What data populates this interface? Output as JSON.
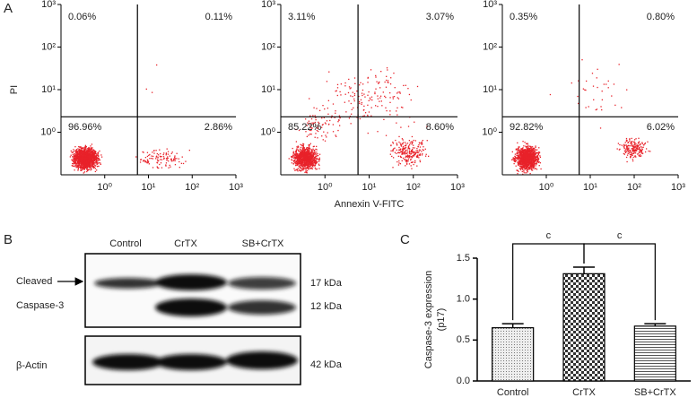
{
  "panels": [
    "A",
    "B",
    "C"
  ],
  "chart_data": [
    {
      "type": "flow",
      "ylabel": "PI",
      "xscale": "log",
      "yscale": "log",
      "color": "#e8222a",
      "xlim": [
        0.1,
        1000
      ],
      "ylim": [
        0.1,
        1000
      ],
      "xticks": [
        {
          "value": 1,
          "label": "10⁰"
        },
        {
          "value": 10,
          "label": "10¹"
        },
        {
          "value": 100,
          "label": "10²"
        },
        {
          "value": 1000,
          "label": "10³"
        }
      ],
      "yticks": [
        {
          "value": 1,
          "label": "10⁰"
        },
        {
          "value": 10,
          "label": "10¹"
        },
        {
          "value": 100,
          "label": "10²"
        },
        {
          "value": 1000,
          "label": "10³"
        }
      ],
      "quadrant_x": 5.6,
      "quadrant_y": 2.3,
      "quadrants": {
        "values": [
          0.06,
          0.11,
          96.96,
          2.86
        ],
        "value_labels": [
          "0.06%",
          "0.11%",
          "96.96%",
          "2.86%"
        ]
      }
    },
    {
      "type": "flow",
      "xlabel": "Annexin V-FITC",
      "xscale": "log",
      "yscale": "log",
      "color": "#e8222a",
      "xlim": [
        0.1,
        1000
      ],
      "ylim": [
        0.1,
        1000
      ],
      "xticks": [
        {
          "value": 1,
          "label": "10⁰"
        },
        {
          "value": 10,
          "label": "10¹"
        },
        {
          "value": 100,
          "label": "10²"
        },
        {
          "value": 1000,
          "label": "10³"
        }
      ],
      "yticks": [
        {
          "value": 1,
          "label": "10⁰"
        },
        {
          "value": 10,
          "label": "10¹"
        },
        {
          "value": 100,
          "label": "10²"
        },
        {
          "value": 1000,
          "label": "10³"
        }
      ],
      "quadrant_x": 5.6,
      "quadrant_y": 2.3,
      "quadrants": {
        "values": [
          3.11,
          3.07,
          85.22,
          8.6
        ],
        "value_labels": [
          "3.11%",
          "3.07%",
          "85.22%",
          "8.60%"
        ]
      }
    },
    {
      "type": "flow",
      "xscale": "log",
      "yscale": "log",
      "color": "#e8222a",
      "xlim": [
        0.1,
        1000
      ],
      "ylim": [
        0.1,
        1000
      ],
      "xticks": [
        {
          "value": 1,
          "label": "10⁰"
        },
        {
          "value": 10,
          "label": "10¹"
        },
        {
          "value": 100,
          "label": "10²"
        },
        {
          "value": 1000,
          "label": "10³"
        }
      ],
      "yticks": [
        {
          "value": 1,
          "label": "10⁰"
        },
        {
          "value": 10,
          "label": "10¹"
        },
        {
          "value": 100,
          "label": "10²"
        },
        {
          "value": 1000,
          "label": "10³"
        }
      ],
      "quadrant_x": 5.6,
      "quadrant_y": 2.3,
      "quadrants": {
        "values": [
          0.35,
          0.8,
          92.82,
          6.02
        ],
        "value_labels": [
          "0.35%",
          "0.80%",
          "92.82%",
          "6.02%"
        ]
      }
    },
    {
      "type": "bar",
      "ylabel": [
        "Caspase-3 expression",
        "(p17)"
      ],
      "categories": [
        "Control",
        "CrTX",
        "SB+CrTX"
      ],
      "values": [
        0.65,
        1.31,
        0.67
      ],
      "errors": [
        0.05,
        0.08,
        0.03
      ],
      "ylim": [
        0,
        1.5
      ],
      "yticks": [
        {
          "value": 0,
          "label": "0.0"
        },
        0.5,
        {
          "value": 1,
          "label": "1.0"
        },
        1.5
      ],
      "annotations": [
        "c",
        "c"
      ]
    }
  ],
  "blot": {
    "lanes": [
      "Control",
      "CrTX",
      "SB+CrTX"
    ],
    "left_labels": [
      "Cleaved",
      "Caspase-3",
      "β-Actin"
    ],
    "right_labels": [
      "17 kDa",
      "12 kDa",
      "42 kDa"
    ]
  }
}
